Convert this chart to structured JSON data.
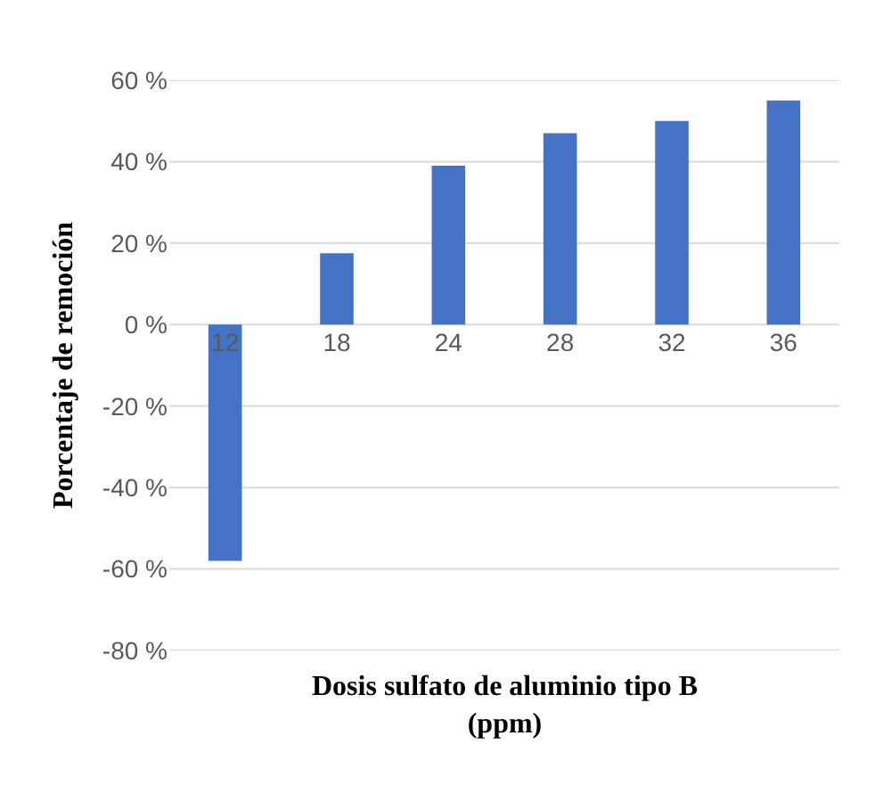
{
  "chart_data": {
    "type": "bar",
    "xlabel": "Dosis sulfato de aluminio tipo B (ppm)",
    "ylabel": "Porcentaje de remoción",
    "categories": [
      "12",
      "18",
      "24",
      "28",
      "32",
      "36"
    ],
    "values": [
      -58,
      17.5,
      39,
      47,
      50,
      55
    ],
    "color": "#4472c4",
    "ylim": [
      -80,
      60
    ],
    "yticks": [
      {
        "value": -80,
        "label": "-80 %"
      },
      {
        "value": -60,
        "label": "-60 %"
      },
      {
        "value": -40,
        "label": "-40 %"
      },
      {
        "value": -20,
        "label": "-20 %"
      },
      {
        "value": 0,
        "label": "0 %"
      },
      {
        "value": 20,
        "label": "20 %"
      },
      {
        "value": 40,
        "label": "40 %"
      },
      {
        "value": 60,
        "label": "60 %"
      }
    ],
    "grid": "y"
  }
}
